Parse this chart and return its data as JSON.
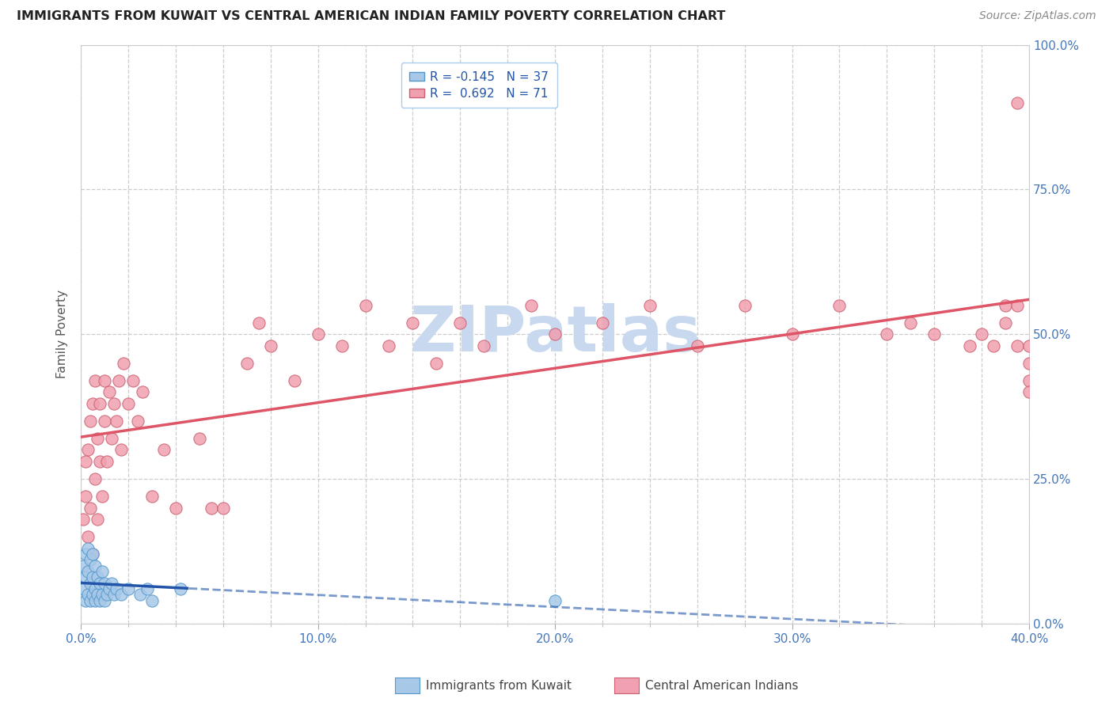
{
  "title": "IMMIGRANTS FROM KUWAIT VS CENTRAL AMERICAN INDIAN FAMILY POVERTY CORRELATION CHART",
  "source": "Source: ZipAtlas.com",
  "ylabel": "Family Poverty",
  "xlim": [
    0.0,
    0.4
  ],
  "ylim": [
    0.0,
    1.0
  ],
  "xtick_labels": [
    "0.0%",
    "",
    "",
    "",
    "",
    "10.0%",
    "",
    "",
    "",
    "",
    "20.0%",
    "",
    "",
    "",
    "",
    "30.0%",
    "",
    "",
    "",
    "",
    "40.0%"
  ],
  "xtick_vals": [
    0.0,
    0.02,
    0.04,
    0.06,
    0.08,
    0.1,
    0.12,
    0.14,
    0.16,
    0.18,
    0.2,
    0.22,
    0.24,
    0.26,
    0.28,
    0.3,
    0.32,
    0.34,
    0.36,
    0.38,
    0.4
  ],
  "ytick_labels": [
    "100.0%",
    "75.0%",
    "50.0%",
    "25.0%",
    "0.0%"
  ],
  "ytick_vals": [
    1.0,
    0.75,
    0.5,
    0.25,
    0.0
  ],
  "kuwait_color": "#a8c8e8",
  "kuwait_edge": "#5599cc",
  "ca_indian_color": "#f0a0b0",
  "ca_indian_edge": "#cc6070",
  "kuwait_line_color": "#2255aa",
  "ca_indian_line_color": "#dd5566",
  "background_color": "#ffffff",
  "grid_color": "#cccccc",
  "title_color": "#222222",
  "axis_label_color": "#555555",
  "tick_color": "#4477bb",
  "watermark_color": "#c8d8ee",
  "legend_label1": "R = -0.145   N = 37",
  "legend_label2": "R =  0.692   N = 71",
  "kuwait_x": [
    0.001,
    0.001,
    0.002,
    0.002,
    0.002,
    0.003,
    0.003,
    0.003,
    0.004,
    0.004,
    0.004,
    0.005,
    0.005,
    0.005,
    0.006,
    0.006,
    0.006,
    0.007,
    0.007,
    0.008,
    0.008,
    0.009,
    0.009,
    0.01,
    0.01,
    0.011,
    0.012,
    0.013,
    0.014,
    0.015,
    0.017,
    0.02,
    0.025,
    0.028,
    0.03,
    0.042,
    0.2
  ],
  "kuwait_y": [
    0.06,
    0.1,
    0.04,
    0.08,
    0.12,
    0.05,
    0.09,
    0.13,
    0.04,
    0.07,
    0.11,
    0.05,
    0.08,
    0.12,
    0.04,
    0.06,
    0.1,
    0.05,
    0.08,
    0.04,
    0.07,
    0.05,
    0.09,
    0.04,
    0.07,
    0.05,
    0.06,
    0.07,
    0.05,
    0.06,
    0.05,
    0.06,
    0.05,
    0.06,
    0.04,
    0.06,
    0.04
  ],
  "ca_x": [
    0.001,
    0.002,
    0.002,
    0.003,
    0.003,
    0.004,
    0.004,
    0.005,
    0.005,
    0.006,
    0.006,
    0.007,
    0.007,
    0.008,
    0.008,
    0.009,
    0.01,
    0.01,
    0.011,
    0.012,
    0.013,
    0.014,
    0.015,
    0.016,
    0.017,
    0.018,
    0.02,
    0.022,
    0.024,
    0.026,
    0.03,
    0.035,
    0.04,
    0.05,
    0.055,
    0.06,
    0.07,
    0.075,
    0.08,
    0.09,
    0.1,
    0.11,
    0.12,
    0.13,
    0.14,
    0.15,
    0.16,
    0.17,
    0.19,
    0.2,
    0.22,
    0.24,
    0.26,
    0.28,
    0.3,
    0.32,
    0.34,
    0.35,
    0.36,
    0.375,
    0.38,
    0.385,
    0.39,
    0.39,
    0.395,
    0.395,
    0.395,
    0.4,
    0.4,
    0.4,
    0.4
  ],
  "ca_y": [
    0.18,
    0.22,
    0.28,
    0.15,
    0.3,
    0.2,
    0.35,
    0.12,
    0.38,
    0.25,
    0.42,
    0.18,
    0.32,
    0.28,
    0.38,
    0.22,
    0.35,
    0.42,
    0.28,
    0.4,
    0.32,
    0.38,
    0.35,
    0.42,
    0.3,
    0.45,
    0.38,
    0.42,
    0.35,
    0.4,
    0.22,
    0.3,
    0.2,
    0.32,
    0.2,
    0.2,
    0.45,
    0.52,
    0.48,
    0.42,
    0.5,
    0.48,
    0.55,
    0.48,
    0.52,
    0.45,
    0.52,
    0.48,
    0.55,
    0.5,
    0.52,
    0.55,
    0.48,
    0.55,
    0.5,
    0.55,
    0.5,
    0.52,
    0.5,
    0.48,
    0.5,
    0.48,
    0.52,
    0.55,
    0.48,
    0.9,
    0.55,
    0.42,
    0.48,
    0.45,
    0.4
  ]
}
